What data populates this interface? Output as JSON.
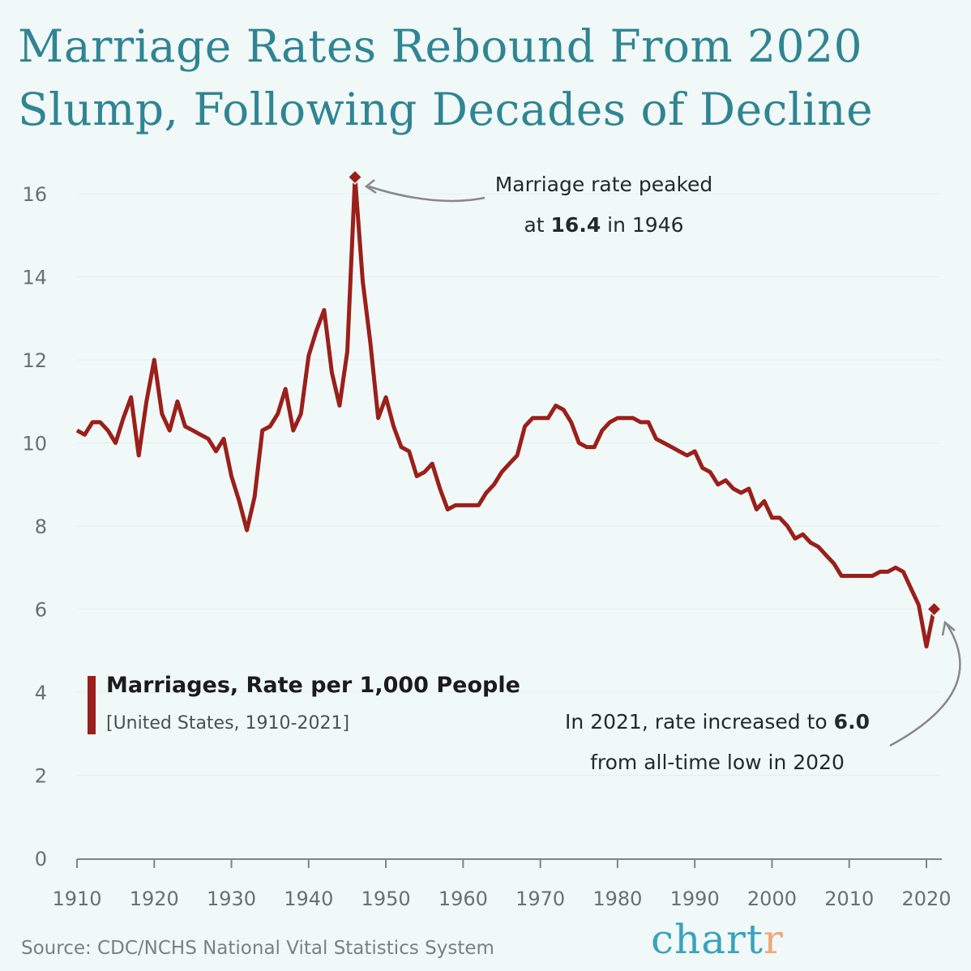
{
  "title": "Marriage Rates Rebound From 2020 Slump, Following Decades of Decline",
  "legend": {
    "title": "Marriages, Rate per 1,000 People",
    "subtitle": "[United States, 1910-2021]"
  },
  "annotations": {
    "peak_line1": "Marriage rate peaked",
    "peak_line2_pre": "at ",
    "peak_value": "16.4",
    "peak_line2_post": " in 1946",
    "recent_line1_pre": "In 2021,  rate increased to ",
    "recent_value": "6.0",
    "recent_line2": "from all-time low in 2020"
  },
  "source": "Source: CDC/NCHS National Vital Statistics System",
  "logo": {
    "main": "chart",
    "accent": "r"
  },
  "colors": {
    "line": "#9b1f1a",
    "title": "#2f8593",
    "background": "#f1f9f8"
  },
  "chart_data": {
    "type": "line",
    "title": "Marriage Rates Rebound From 2020 Slump, Following Decades of Decline",
    "xlabel": "",
    "ylabel": "",
    "xlim": [
      1910,
      2021
    ],
    "ylim": [
      0,
      16
    ],
    "x_ticks": [
      "1910",
      "1920",
      "1930",
      "1940",
      "1950",
      "1960",
      "1970",
      "1980",
      "1990",
      "2000",
      "2010",
      "2020"
    ],
    "y_ticks": [
      "0",
      "2",
      "4",
      "6",
      "8",
      "10",
      "12",
      "14",
      "16"
    ],
    "grid": "horizontal",
    "legend_position": "lower-left",
    "series": [
      {
        "name": "Marriages, Rate per 1,000 People",
        "x_start": 1910,
        "values": [
          10.3,
          10.2,
          10.5,
          10.5,
          10.3,
          10.0,
          10.6,
          11.1,
          9.7,
          11.0,
          12.0,
          10.7,
          10.3,
          11.0,
          10.4,
          10.3,
          10.2,
          10.1,
          9.8,
          10.1,
          9.2,
          8.6,
          7.9,
          8.7,
          10.3,
          10.4,
          10.7,
          11.3,
          10.3,
          10.7,
          12.1,
          12.7,
          13.2,
          11.7,
          10.9,
          12.2,
          16.4,
          13.9,
          12.4,
          10.6,
          11.1,
          10.4,
          9.9,
          9.8,
          9.2,
          9.3,
          9.5,
          8.9,
          8.4,
          8.5,
          8.5,
          8.5,
          8.5,
          8.8,
          9.0,
          9.3,
          9.5,
          9.7,
          10.4,
          10.6,
          10.6,
          10.6,
          10.9,
          10.8,
          10.5,
          10.0,
          9.9,
          9.9,
          10.3,
          10.5,
          10.6,
          10.6,
          10.6,
          10.5,
          10.5,
          10.1,
          10.0,
          9.9,
          9.8,
          9.7,
          9.8,
          9.4,
          9.3,
          9.0,
          9.1,
          8.9,
          8.8,
          8.9,
          8.4,
          8.6,
          8.2,
          8.2,
          8.0,
          7.7,
          7.8,
          7.6,
          7.5,
          7.3,
          7.1,
          6.8,
          6.8,
          6.8,
          6.8,
          6.8,
          6.9,
          6.9,
          7.0,
          6.9,
          6.5,
          6.1,
          5.1,
          6.0
        ]
      }
    ],
    "highlights": [
      {
        "x": 1946,
        "y": 16.4
      },
      {
        "x": 2021,
        "y": 6.0
      }
    ]
  }
}
